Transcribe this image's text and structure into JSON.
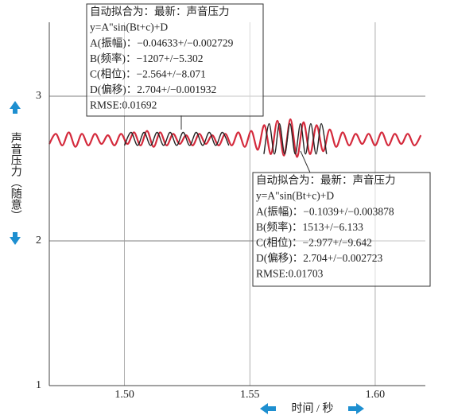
{
  "chart_data": {
    "type": "line",
    "ylabel": "声音压力（随意）",
    "xlabel": "时间 / 秒",
    "xlim": [
      1.47,
      1.62
    ],
    "ylim": [
      1,
      3.5
    ],
    "xticks": [
      {
        "value": 1.5,
        "label": "1.50"
      },
      1.55,
      {
        "value": 1.6,
        "label": "1.60"
      }
    ],
    "yticks": [
      1,
      2,
      3
    ],
    "grid": true,
    "series": [
      {
        "color": "#d42a3c",
        "x": [
          1.47,
          1.4726,
          1.4752,
          1.4778,
          1.4804,
          1.483,
          1.4856,
          1.4882,
          1.4908,
          1.4934,
          1.496,
          1.4986,
          1.5012,
          1.5038,
          1.5064,
          1.509,
          1.5116,
          1.5142,
          1.5168,
          1.5194,
          1.522,
          1.5246,
          1.5272,
          1.5298,
          1.5324,
          1.535,
          1.5376,
          1.5402,
          1.5428,
          1.5454,
          1.548,
          1.5506,
          1.5532,
          1.5558,
          1.5584,
          1.561,
          1.5636,
          1.5662,
          1.5688,
          1.5714,
          1.574,
          1.5766,
          1.5792,
          1.5818,
          1.5844,
          1.587,
          1.5896,
          1.5922,
          1.5948,
          1.5974,
          1.6,
          1.6026,
          1.6052,
          1.6078,
          1.6104,
          1.613,
          1.6156,
          1.6182
        ],
        "values": [
          2.67,
          2.74,
          2.66,
          2.75,
          2.65,
          2.74,
          2.66,
          2.74,
          2.67,
          2.73,
          2.66,
          2.74,
          2.67,
          2.75,
          2.66,
          2.76,
          2.65,
          2.75,
          2.66,
          2.74,
          2.67,
          2.73,
          2.66,
          2.74,
          2.67,
          2.73,
          2.66,
          2.74,
          2.66,
          2.75,
          2.65,
          2.76,
          2.63,
          2.8,
          2.6,
          2.83,
          2.59,
          2.84,
          2.58,
          2.82,
          2.6,
          2.8,
          2.62,
          2.77,
          2.65,
          2.75,
          2.66,
          2.74,
          2.67,
          2.74,
          2.66,
          2.75,
          2.66,
          2.74,
          2.67,
          2.74,
          2.66,
          2.73
        ]
      },
      {
        "color": "#222222",
        "x": [
          1.5,
          1.5026,
          1.5052,
          1.5078,
          1.5104,
          1.513,
          1.5156,
          1.5182,
          1.5208,
          1.5234,
          1.526,
          1.5286,
          1.5312,
          1.5338,
          1.5364,
          1.539,
          1.5416
        ],
        "values": [
          2.66,
          2.75,
          2.66,
          2.75,
          2.66,
          2.75,
          2.66,
          2.75,
          2.66,
          2.75,
          2.66,
          2.75,
          2.66,
          2.75,
          2.66,
          2.75,
          2.66
        ]
      },
      {
        "color": "#222222",
        "x": [
          1.5556,
          1.5577,
          1.5598,
          1.5618,
          1.5639,
          1.566,
          1.5681,
          1.5702,
          1.5722,
          1.5743,
          1.5764,
          1.5785,
          1.5806
        ],
        "values": [
          2.6,
          2.81,
          2.6,
          2.81,
          2.6,
          2.81,
          2.6,
          2.81,
          2.6,
          2.81,
          2.6,
          2.81,
          2.6
        ]
      }
    ],
    "annotations": [
      {
        "lines": [
          "自动拟合为：最新：声音压力",
          "y=A\"sin(Bt+c)+D",
          "A(振幅)：−0.04633+/−0.002729",
          "B(频率)：−1207+/−5.302",
          "C(相位)：−2.564+/−8.071",
          "D(偏移)：2.704+/−0.001932",
          "RMSE:0.01692"
        ]
      },
      {
        "lines": [
          "自动拟合为：最新：声音压力",
          "y=A\"sin(Bt+c)+D",
          "A(振幅)：−0.1039+/−0.003878",
          "B(频率)：1513+/−6.133",
          "C(相位)：−2.977+/−9.642",
          "D(偏移)：2.704+/−0.002723",
          "RMSE:0.01703"
        ]
      }
    ]
  }
}
